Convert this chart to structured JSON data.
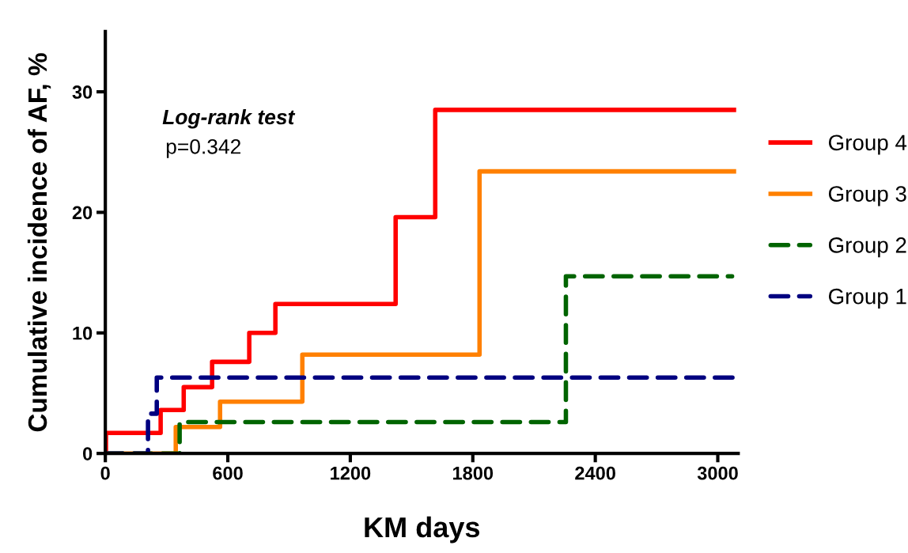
{
  "chart_data": {
    "type": "step",
    "xlabel": "KM days",
    "ylabel": "Cumulative incidence of AF, %",
    "xlim": [
      0,
      3100
    ],
    "ylim": [
      0,
      35
    ],
    "xticks": [
      0,
      600,
      1200,
      1800,
      2400,
      3000
    ],
    "yticks": [
      0,
      10,
      20,
      30
    ],
    "grid": false,
    "legend": "right",
    "marker": "none",
    "annotations": [
      "Log-rank test",
      "p=0.342"
    ],
    "series": [
      {
        "name": "Group 4",
        "color": "#ff0000",
        "line_style": "solid",
        "x": [
          0,
          3,
          271,
          384,
          523,
          705,
          833,
          1422,
          1616,
          3090
        ],
        "values": [
          0,
          1.7,
          3.6,
          5.5,
          7.6,
          10.0,
          12.4,
          19.6,
          28.5,
          28.5
        ]
      },
      {
        "name": "Group 3",
        "color": "#ff8000",
        "line_style": "solid",
        "x": [
          0,
          345,
          562,
          965,
          1833,
          3090
        ],
        "values": [
          0,
          2.2,
          4.3,
          8.2,
          23.4,
          23.4
        ]
      },
      {
        "name": "Group 2",
        "color": "#006400",
        "line_style": "dashed",
        "x": [
          0,
          364,
          2256,
          3070
        ],
        "values": [
          0,
          2.6,
          14.7,
          14.7
        ]
      },
      {
        "name": "Group 1",
        "color": "#000080",
        "line_style": "dashed",
        "x": [
          0,
          209,
          252,
          3090
        ],
        "values": [
          0,
          3.3,
          6.3,
          6.3
        ]
      }
    ]
  }
}
